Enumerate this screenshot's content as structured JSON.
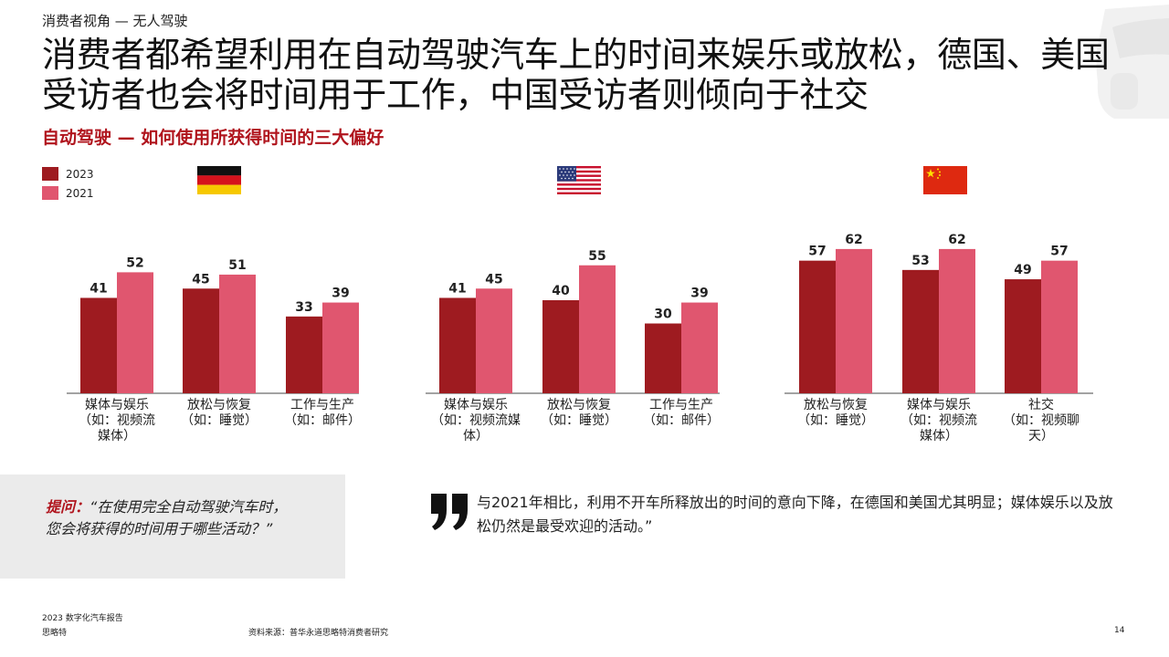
{
  "header": {
    "section_label": "消费者视角 — 无人驾驶",
    "title": "消费者都希望利用在自动驾驶汽车上的时间来娱乐或放松，德国、美国受访者也会将时间用于工作，中国受访者则倾向于社交",
    "subtitle": "自动驾驶 — 如何使用所获得时间的三大偏好"
  },
  "legend": [
    {
      "label": "2023",
      "color": "#9e1b20"
    },
    {
      "label": "2021",
      "color": "#e0566f"
    }
  ],
  "flags": [
    "germany-flag",
    "usa-flag",
    "china-flag"
  ],
  "chart_data": [
    {
      "type": "bar",
      "country": "germany",
      "categories": [
        "媒体与娱乐\n（如：视频流\n媒体）",
        "放松与恢复\n（如：睡觉）",
        "工作与生产\n（如：邮件）"
      ],
      "series": [
        {
          "name": "2023",
          "values": [
            41,
            45,
            33
          ],
          "color": "#9e1b20"
        },
        {
          "name": "2021",
          "values": [
            52,
            51,
            39
          ],
          "color": "#e0566f"
        }
      ],
      "ylim": [
        0,
        65
      ]
    },
    {
      "type": "bar",
      "country": "usa",
      "categories": [
        "媒体与娱乐\n（如：视频流媒\n体）",
        "放松与恢复\n（如：睡觉）",
        "工作与生产\n（如：邮件）"
      ],
      "series": [
        {
          "name": "2023",
          "values": [
            41,
            40,
            30
          ],
          "color": "#9e1b20"
        },
        {
          "name": "2021",
          "values": [
            45,
            55,
            39
          ],
          "color": "#e0566f"
        }
      ],
      "ylim": [
        0,
        65
      ]
    },
    {
      "type": "bar",
      "country": "china",
      "categories": [
        "放松与恢复\n（如：睡觉）",
        "媒体与娱乐\n（如：视频流\n媒体）",
        "社交\n（如：视频聊\n天）"
      ],
      "series": [
        {
          "name": "2023",
          "values": [
            57,
            53,
            49
          ],
          "color": "#9e1b20"
        },
        {
          "name": "2021",
          "values": [
            62,
            62,
            57
          ],
          "color": "#e0566f"
        }
      ],
      "ylim": [
        0,
        65
      ]
    }
  ],
  "question": {
    "lead": "提问：",
    "text": "“在使用完全自动驾驶汽车时，您会将获得的时间用于哪些活动？”"
  },
  "quote": {
    "mark": "”",
    "text": "与2021年相比，利用不开车所释放出的时间的意向下降，在德国和美国尤其明显；媒体娱乐以及放松仍然是最受欢迎的活动。”"
  },
  "footer": {
    "report": "2023 数字化汽车报告",
    "company": "思略特",
    "source": "资料来源：普华永道思略特消费者研究",
    "page_number": "14"
  }
}
